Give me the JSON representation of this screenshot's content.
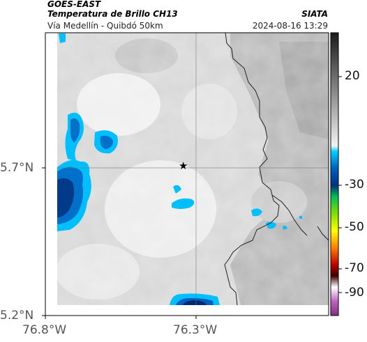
{
  "header": {
    "source": "GOES-EAST",
    "product": "Temperatura de Brillo CH13",
    "brand": "SIATA",
    "region": "Vía Medellín - Quibdó 50km",
    "datetime": "2024-08-16 13:29"
  },
  "axes": {
    "lat_ticks": [
      "5.7°N",
      "5.2°N"
    ],
    "lon_ticks": [
      "76.8°W",
      "76.3°W"
    ]
  },
  "colorbar": {
    "tick_labels": [
      "20",
      "-30",
      "-50",
      "-70",
      "-90"
    ],
    "colors": [
      "#000000",
      "#8c8c8c",
      "#ffffff",
      "#00bfff",
      "#0040a0",
      "#00c000",
      "#ffff00",
      "#ff4000",
      "#800000",
      "#c040c0"
    ]
  },
  "marker": {
    "icon": "star-icon"
  }
}
